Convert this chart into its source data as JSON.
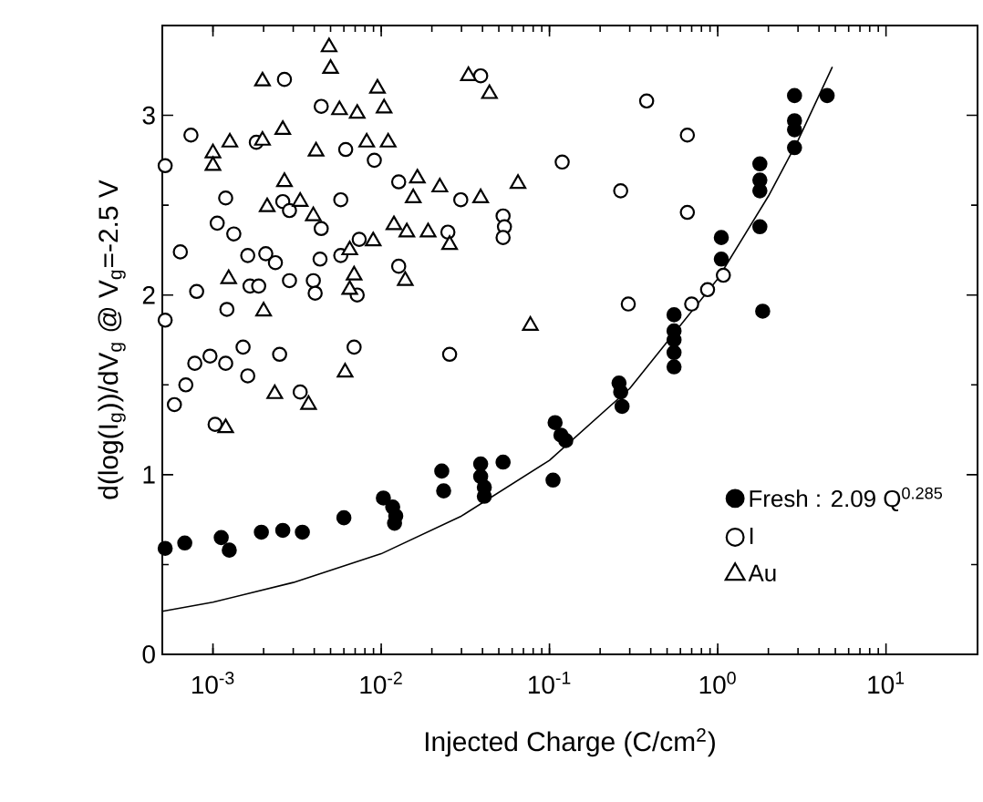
{
  "chart_data": {
    "type": "scatter",
    "xlabel": "Injected Charge (C/cm$^{2}$)",
    "ylabel": "d(log(I$_{g}$))/dV$_{g}$ @ V$_{g}$=-2.5 V",
    "log": "x",
    "xlim": [
      0.0005,
      35
    ],
    "ylim": [
      0,
      3.5
    ],
    "xticks": [
      {
        "value": 0.001,
        "label": "10$^{-3}$"
      },
      {
        "value": 0.01,
        "label": "10$^{-2}$"
      },
      {
        "value": 0.1,
        "label": "10$^{-1}$"
      },
      {
        "value": 1,
        "label": "10$^{0}$"
      },
      {
        "value": 10,
        "label": "10$^{1}$"
      }
    ],
    "yticks": [
      0,
      1,
      2,
      3
    ],
    "legend": "bottom right",
    "series": [
      {
        "name": "Fresh : 2.09 Q$^{0.285}$",
        "marker": "circle",
        "color": "#000000",
        "x": [
          0.00052,
          0.00068,
          0.00112,
          0.00125,
          0.00194,
          0.0026,
          0.0034,
          0.006,
          0.0103,
          0.0117,
          0.0122,
          0.012,
          0.0229,
          0.0235,
          0.039,
          0.053,
          0.039,
          0.041,
          0.041,
          0.105,
          0.108,
          0.117,
          0.125,
          0.259,
          0.265,
          0.27,
          0.55,
          0.55,
          0.55,
          0.55,
          0.55,
          1.05,
          1.05,
          1.78,
          1.78,
          1.78,
          1.78,
          1.85,
          2.86,
          2.86,
          2.86,
          2.86,
          4.47
        ],
        "values": [
          0.59,
          0.62,
          0.65,
          0.58,
          0.68,
          0.69,
          0.68,
          0.76,
          0.87,
          0.82,
          0.77,
          0.73,
          1.02,
          0.91,
          1.06,
          1.07,
          0.99,
          0.93,
          0.88,
          0.97,
          1.29,
          1.22,
          1.19,
          1.51,
          1.46,
          1.38,
          1.89,
          1.8,
          1.75,
          1.68,
          1.6,
          2.32,
          2.2,
          2.73,
          2.64,
          2.58,
          2.38,
          1.91,
          3.11,
          2.97,
          2.92,
          2.82,
          3.11
        ]
      },
      {
        "name": "I",
        "marker": "circle",
        "color": "#ffffff",
        "x": [
          0.00266,
          0.039,
          0.0044,
          0.00074,
          0.00181,
          0.00615,
          0.0091,
          0.00052,
          0.00119,
          0.00575,
          0.0127,
          0.0297,
          0.0026,
          0.00285,
          0.00106,
          0.00133,
          0.0044,
          0.053,
          0.054,
          0.053,
          0.0249,
          0.0074,
          0.00064,
          0.00161,
          0.00206,
          0.00235,
          0.00433,
          0.00575,
          0.0127,
          0.00166,
          0.00187,
          0.00285,
          0.00395,
          0.00405,
          0.0072,
          0.0008,
          0.00121,
          0.00052,
          0.0069,
          0.00151,
          0.00249,
          0.0255,
          0.00096,
          0.00078,
          0.00119,
          0.00161,
          0.00069,
          0.00059,
          0.0033,
          0.00103,
          0.378,
          0.66,
          0.119,
          0.265,
          0.66,
          0.294,
          0.7,
          0.87,
          1.08
        ],
        "values": [
          3.2,
          3.22,
          3.05,
          2.89,
          2.85,
          2.81,
          2.75,
          2.72,
          2.54,
          2.53,
          2.63,
          2.53,
          2.52,
          2.47,
          2.4,
          2.34,
          2.37,
          2.44,
          2.38,
          2.32,
          2.35,
          2.31,
          2.24,
          2.22,
          2.23,
          2.18,
          2.2,
          2.22,
          2.16,
          2.05,
          2.05,
          2.08,
          2.08,
          2.01,
          2.0,
          2.02,
          1.92,
          1.86,
          1.71,
          1.71,
          1.67,
          1.67,
          1.66,
          1.62,
          1.62,
          1.55,
          1.5,
          1.39,
          1.46,
          1.28,
          3.08,
          2.89,
          2.74,
          2.58,
          2.46,
          1.95,
          1.95,
          2.03,
          2.11
        ]
      },
      {
        "name": "Au",
        "marker": "triangle",
        "color": "#ffffff",
        "x": [
          0.0049,
          0.005,
          0.00197,
          0.0095,
          0.00565,
          0.0072,
          0.0104,
          0.0026,
          0.00126,
          0.00197,
          0.001,
          0.001,
          0.0041,
          0.0082,
          0.011,
          0.00266,
          0.0021,
          0.0033,
          0.00395,
          0.0164,
          0.0155,
          0.0223,
          0.039,
          0.065,
          0.033,
          0.044,
          0.0119,
          0.0142,
          0.019,
          0.0255,
          0.00896,
          0.0065,
          0.0069,
          0.0139,
          0.0065,
          0.00124,
          0.002,
          0.077,
          0.0061,
          0.00233,
          0.0037,
          0.00119
        ],
        "values": [
          3.38,
          3.26,
          3.19,
          3.15,
          3.03,
          3.01,
          3.04,
          2.92,
          2.85,
          2.86,
          2.79,
          2.72,
          2.8,
          2.85,
          2.85,
          2.63,
          2.49,
          2.52,
          2.44,
          2.65,
          2.54,
          2.6,
          2.54,
          2.62,
          3.22,
          3.12,
          2.39,
          2.35,
          2.35,
          2.28,
          2.3,
          2.25,
          2.11,
          2.08,
          2.03,
          2.09,
          1.91,
          1.83,
          1.57,
          1.45,
          1.39,
          1.26
        ]
      },
      {
        "type": "line",
        "marker": "none",
        "line_style": "solid",
        "color": "#000000",
        "x": [
          0.0005,
          0.001,
          0.003,
          0.01,
          0.03,
          0.1,
          0.3,
          1,
          2,
          3,
          4.8
        ],
        "values": [
          0.24,
          0.29,
          0.4,
          0.56,
          0.77,
          1.08,
          1.48,
          2.09,
          2.55,
          2.86,
          3.27
        ]
      }
    ]
  }
}
